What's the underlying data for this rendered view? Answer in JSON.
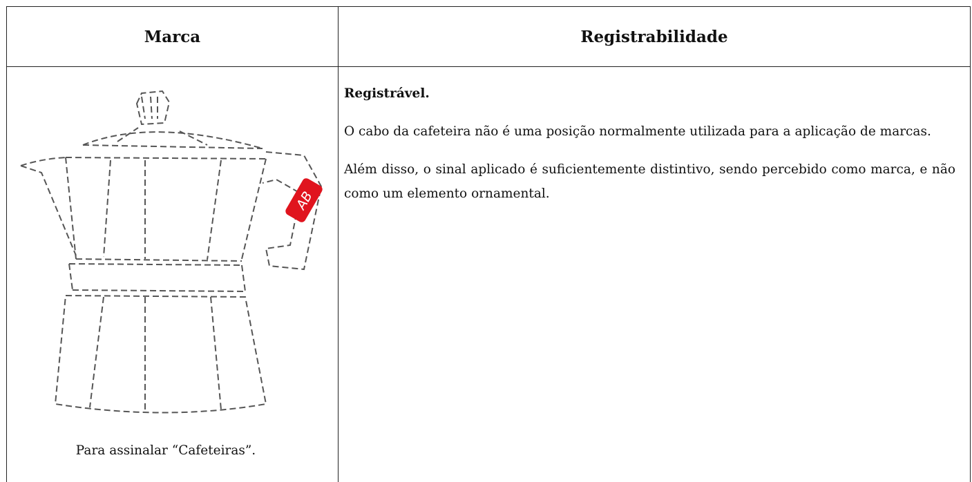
{
  "table": {
    "header": [
      "Marca",
      "Registrabilidade"
    ],
    "rows": [
      {
        "mark": {
          "image_text": "AB",
          "caption": "Para assinalar “Cafeteiras”."
        },
        "registrability": {
          "verdict": "Registrável.",
          "paragraphs": [
            "O cabo da cafeteira não é uma posição normalmente utilizada para a aplicação de marcas.",
            "Além disso, o sinal aplicado é suficientemente distintivo, sendo percebido como marca, e não como um elemento ornamental."
          ]
        }
      }
    ]
  }
}
